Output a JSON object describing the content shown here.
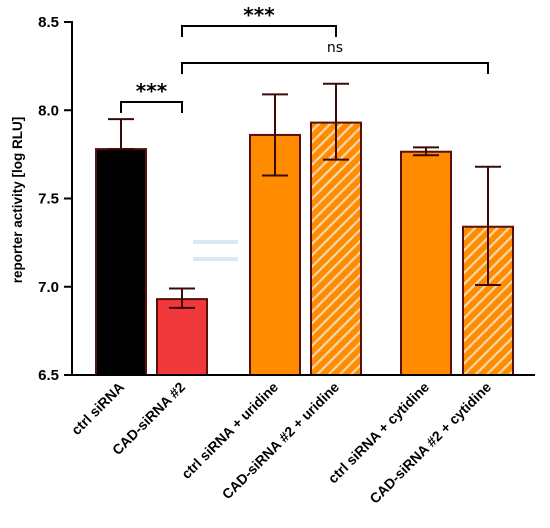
{
  "chart_data": {
    "type": "bar",
    "ylabel": "reporter activity [log RLU]",
    "ylim": [
      6.5,
      8.5
    ],
    "yticks": [
      "6.5",
      "7.0",
      "7.5",
      "8.0",
      "8.5"
    ],
    "categories": [
      "ctrl siRNA",
      "CAD-siRNA #2",
      "ctrl siRNA + uridine",
      "CAD-siRNA #2 + uridine",
      "ctrl siRNA + cytidine",
      "CAD-siRNA #2 + cytidine"
    ],
    "values": [
      7.78,
      6.93,
      7.86,
      7.93,
      7.765,
      7.34
    ],
    "error_low": [
      7.78,
      6.88,
      7.63,
      7.72,
      7.745,
      7.01
    ],
    "error_high": [
      7.95,
      6.99,
      8.09,
      8.15,
      7.79,
      7.68
    ],
    "colors": [
      "#000000",
      "#f0393b",
      "#ff8c00",
      "#ff8c00",
      "#ff8c00",
      "#ff8c00"
    ],
    "hatched": [
      false,
      false,
      false,
      true,
      false,
      true
    ],
    "hatch_color": "#f5d6a6",
    "significance": [
      {
        "from": 0,
        "to": 1,
        "label": "***"
      },
      {
        "from": 1,
        "to": 3,
        "label": "***"
      },
      {
        "from": 1,
        "to": 5,
        "label": "ns"
      }
    ]
  }
}
